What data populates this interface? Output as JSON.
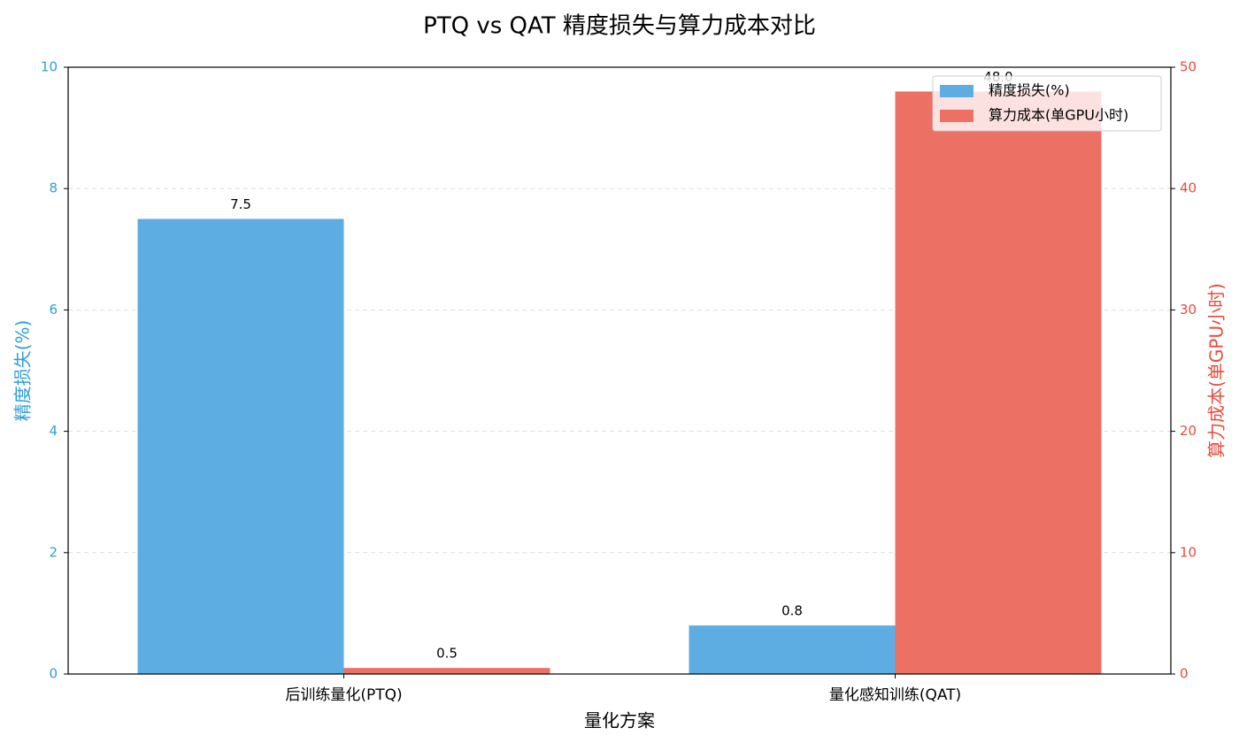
{
  "chart_data": {
    "type": "bar",
    "title": "PTQ vs QAT 精度损失与算力成本对比",
    "x_label": "量化方案",
    "y_label": "精度损失(%)",
    "y2_label": "算力成本(单GPU小时)",
    "categories": [
      "后训练量化(PTQ)",
      "量化感知训练(QAT)"
    ],
    "series": [
      {
        "name": "精度损失(%)",
        "color": "#5dade2",
        "values": [
          7.5,
          0.8
        ]
      },
      {
        "name": "算力成本(单GPU小时)",
        "color": "#ec7063",
        "axis": "y2",
        "values": [
          0.5,
          48.0
        ],
        "value_labels": [
          "0.5",
          "48.0"
        ]
      }
    ],
    "ylim": [
      0,
      10
    ],
    "yticks": [
      0,
      2,
      4,
      6,
      8,
      10
    ],
    "y2lim": [
      0,
      50
    ],
    "y2ticks": [
      0,
      10,
      20,
      30,
      40,
      50
    ],
    "y_color": "#2e9fd4",
    "y2_color": "#e74c3c",
    "grid": true,
    "legend": "upper right"
  }
}
